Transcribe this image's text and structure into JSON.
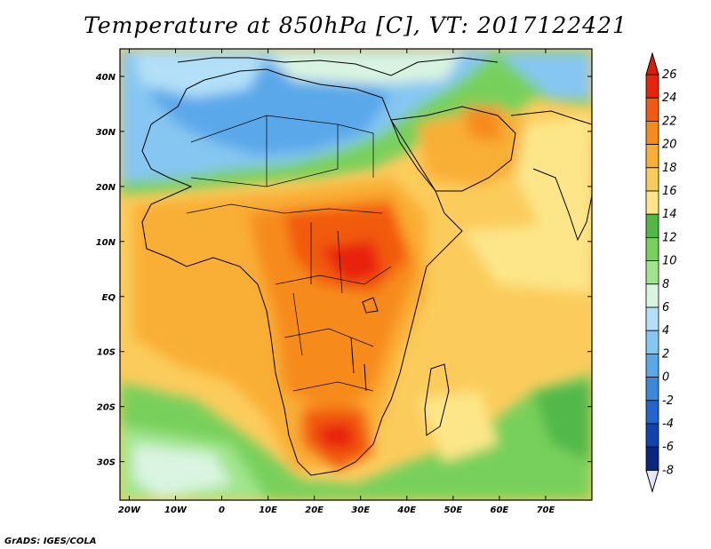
{
  "title": "Temperature at 850hPa [C], VT: 2017122421",
  "footer": "GrADS: IGES/COLA",
  "lat_ticks": [
    "40N",
    "30N",
    "20N",
    "10N",
    "EQ",
    "10S",
    "20S",
    "30S"
  ],
  "lon_ticks": [
    "20W",
    "10W",
    "0",
    "10E",
    "20E",
    "30E",
    "40E",
    "50E",
    "60E",
    "70E"
  ],
  "colorbar": {
    "labels": [
      "26",
      "24",
      "22",
      "20",
      "18",
      "16",
      "14",
      "12",
      "10",
      "8",
      "6",
      "4",
      "2",
      "0",
      "-2",
      "-4",
      "-6",
      "-8"
    ],
    "colors": [
      "#e8230c",
      "#f25a11",
      "#f68b1d",
      "#f9ae36",
      "#fbcc5c",
      "#fde68a",
      "#51b848",
      "#78d05c",
      "#a0e58b",
      "#d9f4e0",
      "#b3e0f8",
      "#86c6f2",
      "#5aa8ea",
      "#3d88df",
      "#2365cc",
      "#0f44b0",
      "#0a2680"
    ],
    "top_color": "#d61e08",
    "bottom_color": "#e6e6fa"
  },
  "chart_data": {
    "type": "heatmap",
    "title": "Temperature at 850hPa [C], VT: 2017122421",
    "variable": "Temperature at 850hPa",
    "units": "C",
    "valid_time": "2017122421",
    "lon_range": [
      -22,
      80
    ],
    "lat_range": [
      -37,
      45
    ],
    "contour_levels": [
      -8,
      -6,
      -4,
      -2,
      0,
      2,
      4,
      6,
      8,
      10,
      12,
      14,
      16,
      18,
      20,
      22,
      24,
      26
    ]
  }
}
